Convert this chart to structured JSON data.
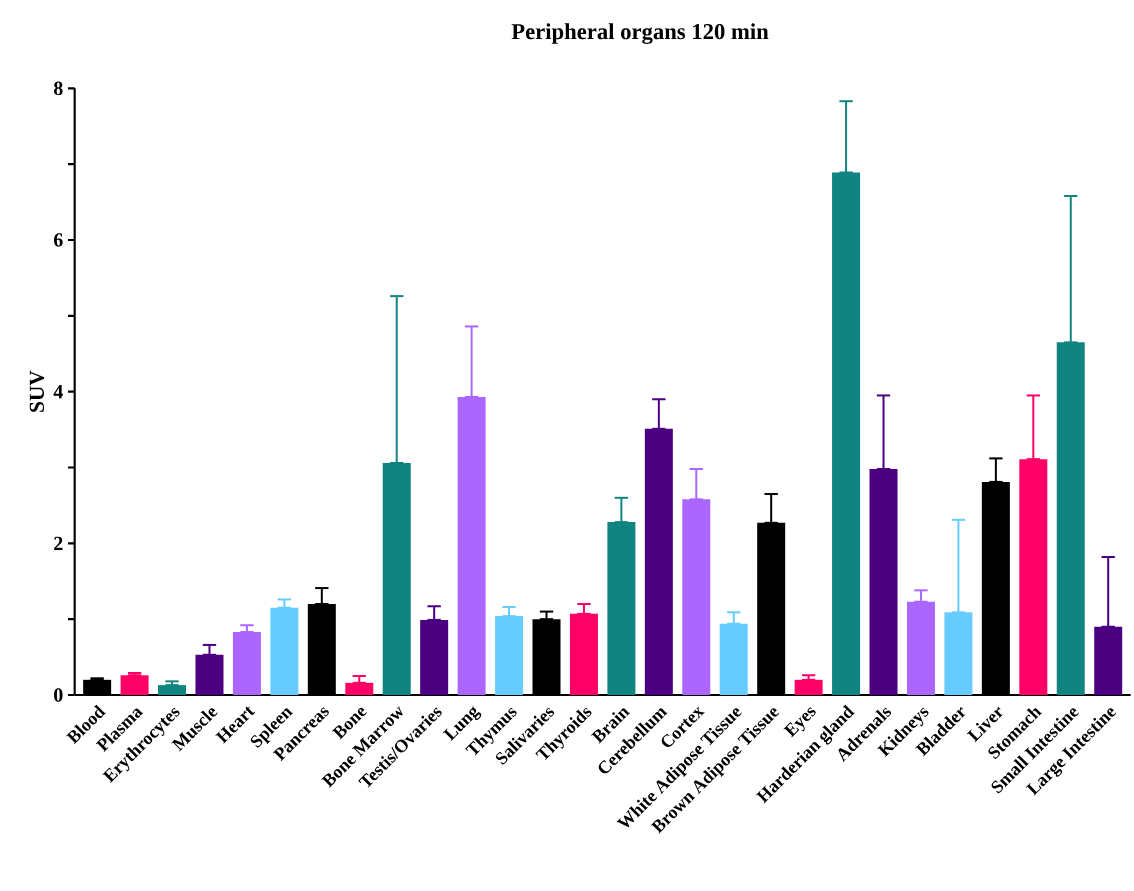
{
  "chart_data": {
    "type": "bar",
    "title": "Peripheral organs 120 min",
    "ylabel": "SUV",
    "categories": [
      "Blood",
      "Plasma",
      "Erythrocytes",
      "Muscle",
      "Heart",
      "Spleen",
      "Pancreas",
      "Bone",
      "Bone Marrow",
      "Testis/Ovaries",
      "Lung",
      "Thymus",
      "Salivaries",
      "Thyroids",
      "Brain",
      "Cerebellum",
      "Cortex",
      "White Adipose Tissue",
      "Brown Adipose Tissue",
      "Eyes",
      "Harderian gland",
      "Adrenals",
      "Kidneys",
      "Bladder",
      "Liver",
      "Stomach",
      "Small Intestine",
      "Large Intestine"
    ],
    "values": [
      0.2,
      0.26,
      0.13,
      0.53,
      0.83,
      1.15,
      1.2,
      0.16,
      3.06,
      0.99,
      3.93,
      1.04,
      1.0,
      1.07,
      2.28,
      3.51,
      2.58,
      0.94,
      2.27,
      0.2,
      6.89,
      2.98,
      1.23,
      1.09,
      2.81,
      3.11,
      4.65,
      0.9
    ],
    "errors": [
      [
        0.2,
        0.22
      ],
      [
        0.26,
        0.29
      ],
      [
        0.13,
        0.18
      ],
      [
        0.53,
        0.66
      ],
      [
        0.83,
        0.92
      ],
      [
        1.15,
        1.26
      ],
      [
        1.2,
        1.41
      ],
      [
        0.16,
        0.25
      ],
      [
        3.06,
        5.26
      ],
      [
        0.99,
        1.17
      ],
      [
        3.93,
        4.86
      ],
      [
        1.04,
        1.16
      ],
      [
        1.0,
        1.1
      ],
      [
        1.07,
        1.2
      ],
      [
        2.28,
        2.6
      ],
      [
        3.51,
        3.9
      ],
      [
        2.58,
        2.98
      ],
      [
        0.94,
        1.09
      ],
      [
        2.27,
        2.65
      ],
      [
        0.2,
        0.26
      ],
      [
        6.89,
        7.83
      ],
      [
        2.98,
        3.95
      ],
      [
        1.23,
        1.38
      ],
      [
        1.09,
        2.31
      ],
      [
        2.81,
        3.12
      ],
      [
        3.11,
        3.95
      ],
      [
        4.65,
        6.58
      ],
      [
        0.9,
        1.82
      ]
    ],
    "colors": [
      "#000000",
      "#ff0066",
      "#108480",
      "#4b0082",
      "#aa66ff",
      "#66ccff",
      "#000000",
      "#ff0066",
      "#108480",
      "#4b0082",
      "#aa66ff",
      "#66ccff",
      "#000000",
      "#ff0066",
      "#108480",
      "#4b0082",
      "#aa66ff",
      "#66ccff",
      "#000000",
      "#ff0066",
      "#108480",
      "#4b0082",
      "#aa66ff",
      "#66ccff",
      "#000000",
      "#ff0066",
      "#108480",
      "#4b0082"
    ],
    "ylim": [
      0,
      8
    ],
    "yticks": [
      0,
      {
        "value": 1,
        "label": null
      },
      2,
      {
        "value": 3,
        "label": null
      },
      4,
      {
        "value": 5,
        "label": null
      },
      6,
      {
        "value": 7,
        "label": null
      },
      8
    ],
    "grid": false
  }
}
